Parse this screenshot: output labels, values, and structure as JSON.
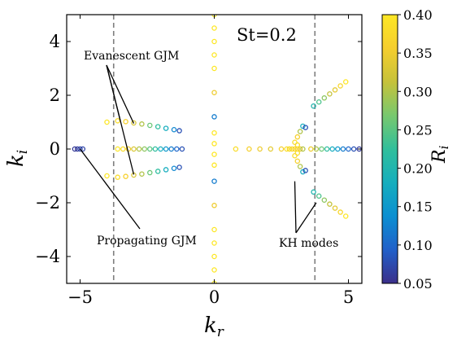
{
  "chart_data": {
    "type": "scatter",
    "annotation_main": "St=0.2",
    "xlabel_base": "k",
    "xlabel_sub": "r",
    "ylabel_base": "k",
    "ylabel_sub": "i",
    "xlim": [
      -5.5,
      5.5
    ],
    "ylim": [
      -5,
      5
    ],
    "xticks": [
      -5,
      0,
      5
    ],
    "xtick_labels": [
      "−5",
      "0",
      "5"
    ],
    "yticks": [
      -4,
      -2,
      0,
      2,
      4
    ],
    "ytick_labels": [
      "−4",
      "−2",
      "0",
      "2",
      "4"
    ],
    "grid": false,
    "marker": "open-circle",
    "vertical_dashed_lines_x": [
      -3.75,
      3.75
    ],
    "annotations": [
      {
        "text": "Evanescent GJM",
        "arrow_targets": [
          [
            -3.5,
            1.05
          ],
          [
            -3.0,
            0.95
          ],
          [
            -3.0,
            -0.95
          ]
        ]
      },
      {
        "text": "Propagating GJM",
        "arrow_targets": [
          [
            -5.0,
            0.0
          ]
        ]
      },
      {
        "text": "KH modes",
        "arrow_targets": [
          [
            3.0,
            -1.2
          ],
          [
            3.8,
            -2.0
          ]
        ]
      }
    ],
    "colorbar": {
      "label_base": "R",
      "label_sub": "i",
      "min": 0.05,
      "max": 0.4,
      "ticks": [
        0.05,
        0.1,
        0.15,
        0.2,
        0.25,
        0.3,
        0.35,
        0.4
      ],
      "tick_labels": [
        "0.05",
        "0.10",
        "0.15",
        "0.20",
        "0.25",
        "0.30",
        "0.35",
        "0.40"
      ],
      "colors": [
        "#3b2f8a",
        "#2160c9",
        "#0b8fd1",
        "#16aebd",
        "#31bf9b",
        "#78c86e",
        "#c6c23a",
        "#f5ce2e",
        "#fde725"
      ]
    },
    "series": [
      {
        "label": "gjm-upper",
        "x": [
          -3.6,
          -3.3,
          -3.0,
          -2.7,
          -2.4,
          -2.1,
          -1.8,
          -1.5,
          -1.3
        ],
        "y": [
          1.05,
          1.02,
          0.97,
          0.93,
          0.88,
          0.83,
          0.77,
          0.72,
          0.68
        ],
        "ri": [
          0.38,
          0.36,
          0.33,
          0.3,
          0.26,
          0.22,
          0.18,
          0.13,
          0.08
        ]
      },
      {
        "label": "gjm-lower",
        "x": [
          -3.6,
          -3.3,
          -3.0,
          -2.7,
          -2.4,
          -2.1,
          -1.8,
          -1.5,
          -1.3
        ],
        "y": [
          -1.05,
          -1.02,
          -0.97,
          -0.93,
          -0.88,
          -0.83,
          -0.77,
          -0.72,
          -0.68
        ],
        "ri": [
          0.38,
          0.36,
          0.33,
          0.3,
          0.26,
          0.22,
          0.18,
          0.13,
          0.08
        ]
      },
      {
        "label": "gjm-evanescent-outliers",
        "x": [
          -4.0,
          -4.0
        ],
        "y": [
          1.0,
          -1.0
        ],
        "ri": [
          0.4,
          0.4
        ]
      },
      {
        "label": "propagating-gjm",
        "x": [
          -5.2,
          -5.1,
          -5.0,
          -4.9
        ],
        "y": [
          0,
          0,
          0,
          0
        ],
        "ri": [
          0.06,
          0.06,
          0.07,
          0.07
        ]
      },
      {
        "label": "real-axis-left",
        "x": [
          -3.6,
          -3.4,
          -3.2,
          -3.0,
          -2.8,
          -2.6,
          -2.4,
          -2.2,
          -2.0,
          -1.8,
          -1.6,
          -1.4,
          -1.2
        ],
        "y": [
          0,
          0,
          0,
          0,
          0,
          0,
          0,
          0,
          0,
          0,
          0,
          0,
          0
        ],
        "ri": [
          0.4,
          0.38,
          0.35,
          0.33,
          0.3,
          0.28,
          0.25,
          0.22,
          0.18,
          0.15,
          0.12,
          0.1,
          0.08
        ]
      },
      {
        "label": "imag-axis",
        "x": [
          0,
          0,
          0,
          0,
          0,
          0,
          0,
          0,
          0,
          0,
          0,
          0,
          0,
          0,
          0,
          0,
          0,
          0
        ],
        "y": [
          5.0,
          4.5,
          4.0,
          3.5,
          3.0,
          2.1,
          1.2,
          0.6,
          0.2,
          -0.2,
          -0.6,
          -1.2,
          -2.1,
          -3.0,
          -3.5,
          -4.0,
          -4.5,
          -5.0
        ],
        "ri": [
          0.4,
          0.4,
          0.4,
          0.4,
          0.4,
          0.35,
          0.12,
          0.4,
          0.4,
          0.4,
          0.4,
          0.12,
          0.35,
          0.4,
          0.4,
          0.4,
          0.4,
          0.4
        ]
      },
      {
        "label": "real-axis-mid",
        "x": [
          0.8,
          1.3,
          1.7,
          2.1,
          2.5,
          2.8
        ],
        "y": [
          0,
          0,
          0,
          0,
          0,
          0
        ],
        "ri": [
          0.38,
          0.36,
          0.35,
          0.34,
          0.36,
          0.38
        ]
      },
      {
        "label": "kh-cluster",
        "x": [
          2.7,
          2.8,
          2.9,
          3.0,
          3.1,
          3.2,
          3.3,
          3.0,
          3.1,
          3.2,
          3.3,
          3.0,
          3.1,
          3.2,
          3.3,
          3.1,
          3.1
        ],
        "y": [
          0,
          0,
          0,
          0,
          0,
          0,
          0,
          0.25,
          0.45,
          0.65,
          0.85,
          -0.25,
          -0.45,
          -0.65,
          -0.85,
          0.15,
          -0.15
        ],
        "ri": [
          0.38,
          0.38,
          0.37,
          0.37,
          0.36,
          0.35,
          0.3,
          0.38,
          0.36,
          0.3,
          0.18,
          0.38,
          0.36,
          0.3,
          0.18,
          0.38,
          0.38
        ]
      },
      {
        "label": "real-axis-right",
        "x": [
          3.6,
          3.8,
          4.0,
          4.2,
          4.4,
          4.6,
          4.8,
          5.0,
          5.2,
          5.4
        ],
        "y": [
          0,
          0,
          0,
          0,
          0,
          0,
          0,
          0,
          0,
          0
        ],
        "ri": [
          0.35,
          0.3,
          0.26,
          0.22,
          0.18,
          0.15,
          0.12,
          0.1,
          0.08,
          0.06
        ]
      },
      {
        "label": "kh-upper-branch",
        "x": [
          3.7,
          3.9,
          4.1,
          4.3,
          4.5,
          4.7,
          4.9
        ],
        "y": [
          1.6,
          1.75,
          1.9,
          2.05,
          2.2,
          2.35,
          2.5
        ],
        "ri": [
          0.2,
          0.24,
          0.28,
          0.31,
          0.34,
          0.37,
          0.4
        ]
      },
      {
        "label": "kh-lower-branch",
        "x": [
          3.7,
          3.9,
          4.1,
          4.3,
          4.5,
          4.7,
          4.9
        ],
        "y": [
          -1.6,
          -1.75,
          -1.9,
          -2.05,
          -2.2,
          -2.35,
          -2.5
        ],
        "ri": [
          0.2,
          0.24,
          0.28,
          0.31,
          0.34,
          0.37,
          0.4
        ]
      },
      {
        "label": "kh-small-upper",
        "x": [
          3.4
        ],
        "y": [
          0.8
        ],
        "ri": [
          0.08
        ]
      },
      {
        "label": "kh-small-lower",
        "x": [
          3.4
        ],
        "y": [
          -0.8
        ],
        "ri": [
          0.08
        ]
      }
    ]
  }
}
